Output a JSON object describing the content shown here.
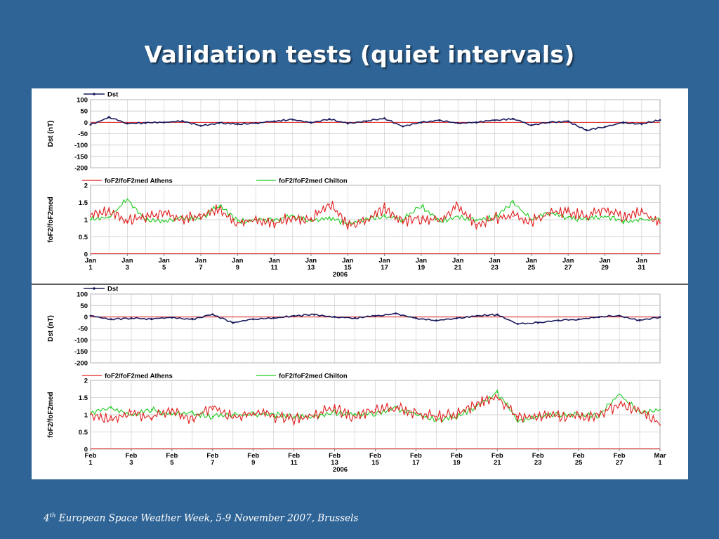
{
  "slide": {
    "title": "Validation tests (quiet intervals)",
    "footer_sup": "th",
    "footer_pre": "4",
    "footer_post": " European Space Weather Week, 5-9 November 2007, Brussels"
  },
  "colors": {
    "background": "#2f6496",
    "dst_line": "#1a1a5e",
    "athens_line": "#e02020",
    "chilton_line": "#22cc22",
    "grid": "#c8c8c8"
  },
  "chart_data": [
    {
      "type": "line",
      "panel": "january-dst",
      "legend": [
        "Dst"
      ],
      "ylabel": "Dst (nT)",
      "ylim": [
        -200,
        100
      ],
      "yticks": [
        "100",
        "50",
        "0",
        "-50",
        "-100",
        "-150",
        "-200"
      ],
      "grid": true,
      "legend_placement": "top-left",
      "series": [
        {
          "name": "Dst",
          "x": [
            1,
            2,
            3,
            4,
            5,
            6,
            7,
            8,
            9,
            10,
            11,
            12,
            13,
            14,
            15,
            16,
            17,
            18,
            19,
            20,
            21,
            22,
            23,
            24,
            25,
            26,
            27,
            28,
            29,
            30,
            31,
            32
          ],
          "values": [
            -10,
            22,
            -5,
            -2,
            0,
            5,
            -15,
            -3,
            -8,
            -3,
            5,
            12,
            -2,
            15,
            -5,
            5,
            18,
            -18,
            0,
            8,
            -3,
            0,
            10,
            15,
            -12,
            0,
            5,
            -35,
            -20,
            0,
            -8,
            10
          ]
        }
      ]
    },
    {
      "type": "line",
      "panel": "january-fof2",
      "legend": [
        "foF2/foF2med Athens",
        "foF2/foF2med Chilton"
      ],
      "ylabel": "foF2/foF2med",
      "ylim": [
        0,
        2
      ],
      "yticks": [
        "2",
        "1.5",
        "1",
        "0.5",
        "0"
      ],
      "xticks_top": [
        "Jan",
        "Jan",
        "Jan",
        "Jan",
        "Jan",
        "Jan",
        "Jan",
        "Jan",
        "Jan",
        "Jan",
        "Jan",
        "Jan",
        "Jan",
        "Jan",
        "Jan",
        "Jan"
      ],
      "xticks_bottom": [
        "1",
        "3",
        "5",
        "7",
        "9",
        "11",
        "13",
        "15",
        "17",
        "19",
        "21",
        "23",
        "25",
        "27",
        "29",
        "31"
      ],
      "xlabel": "2006",
      "grid": true,
      "legend_placement": "top",
      "series": [
        {
          "name": "foF2/foF2med Athens",
          "x": [
            1,
            2,
            3,
            4,
            5,
            6,
            7,
            8,
            9,
            10,
            11,
            12,
            13,
            14,
            15,
            16,
            17,
            18,
            19,
            20,
            21,
            22,
            23,
            24,
            25,
            26,
            27,
            28,
            29,
            30,
            31,
            32
          ],
          "values": [
            1.1,
            1.25,
            0.95,
            1.1,
            1.2,
            0.98,
            1.15,
            1.3,
            0.92,
            1.0,
            0.9,
            1.05,
            1.0,
            1.45,
            0.85,
            1.0,
            1.35,
            0.95,
            1.05,
            0.98,
            1.4,
            0.85,
            1.05,
            1.1,
            0.95,
            1.2,
            1.25,
            1.1,
            1.3,
            1.05,
            1.25,
            0.9
          ]
        },
        {
          "name": "foF2/foF2med Chilton",
          "x": [
            1,
            2,
            3,
            4,
            5,
            6,
            7,
            8,
            9,
            10,
            11,
            12,
            13,
            14,
            15,
            16,
            17,
            18,
            19,
            20,
            21,
            22,
            23,
            24,
            25,
            26,
            27,
            28,
            29,
            30,
            31,
            32
          ],
          "values": [
            1.0,
            1.05,
            1.6,
            1.0,
            0.95,
            1.05,
            1.05,
            1.4,
            0.95,
            1.0,
            1.0,
            1.1,
            0.95,
            1.05,
            0.9,
            1.0,
            1.1,
            1.0,
            1.4,
            0.95,
            1.1,
            1.0,
            1.05,
            1.5,
            1.0,
            1.2,
            1.05,
            1.0,
            1.1,
            0.95,
            1.0,
            1.0
          ]
        }
      ]
    },
    {
      "type": "line",
      "panel": "february-dst",
      "legend": [
        "Dst"
      ],
      "ylabel": "Dst (nT)",
      "ylim": [
        -200,
        100
      ],
      "yticks": [
        "100",
        "50",
        "0",
        "-50",
        "-100",
        "-150",
        "-200"
      ],
      "grid": true,
      "legend_placement": "top-left",
      "series": [
        {
          "name": "Dst",
          "x": [
            1,
            2,
            3,
            4,
            5,
            6,
            7,
            8,
            9,
            10,
            11,
            12,
            13,
            14,
            15,
            16,
            17,
            18,
            19,
            20,
            21,
            22,
            23,
            24,
            25,
            26,
            27,
            28,
            29
          ],
          "values": [
            5,
            -10,
            -5,
            -8,
            -3,
            -10,
            12,
            -25,
            -10,
            -5,
            5,
            10,
            0,
            -5,
            5,
            15,
            -5,
            -15,
            -5,
            5,
            10,
            -30,
            -25,
            -15,
            -10,
            0,
            5,
            -15,
            0
          ]
        }
      ]
    },
    {
      "type": "line",
      "panel": "february-fof2",
      "legend": [
        "foF2/foF2med Athens",
        "foF2/foF2med Chilton"
      ],
      "ylabel": "foF2/foF2med",
      "ylim": [
        0,
        2
      ],
      "yticks": [
        "2",
        "1.5",
        "1",
        "0.5",
        "0"
      ],
      "xticks_top": [
        "Feb",
        "Feb",
        "Feb",
        "Feb",
        "Feb",
        "Feb",
        "Feb",
        "Feb",
        "Feb",
        "Feb",
        "Feb",
        "Feb",
        "Feb",
        "Feb",
        "Mar"
      ],
      "xticks_bottom": [
        "1",
        "3",
        "5",
        "7",
        "9",
        "11",
        "13",
        "15",
        "17",
        "19",
        "21",
        "23",
        "25",
        "27",
        "1"
      ],
      "xlabel": "2006",
      "grid": true,
      "legend_placement": "top",
      "series": [
        {
          "name": "foF2/foF2med Athens",
          "x": [
            1,
            2,
            3,
            4,
            5,
            6,
            7,
            8,
            9,
            10,
            11,
            12,
            13,
            14,
            15,
            16,
            17,
            18,
            19,
            20,
            21,
            22,
            23,
            24,
            25,
            26,
            27,
            28,
            29
          ],
          "values": [
            1.0,
            0.85,
            1.1,
            0.9,
            1.15,
            0.85,
            1.25,
            0.9,
            1.05,
            0.95,
            0.9,
            1.0,
            1.2,
            0.9,
            1.15,
            1.2,
            1.05,
            0.95,
            1.0,
            1.3,
            1.5,
            0.95,
            1.0,
            0.95,
            0.95,
            1.0,
            1.3,
            1.1,
            0.7
          ]
        },
        {
          "name": "foF2/foF2med Chilton",
          "x": [
            1,
            2,
            3,
            4,
            5,
            6,
            7,
            8,
            9,
            10,
            11,
            12,
            13,
            14,
            15,
            16,
            17,
            18,
            19,
            20,
            21,
            22,
            23,
            24,
            25,
            26,
            27,
            28,
            29
          ],
          "values": [
            1.05,
            1.2,
            1.0,
            1.15,
            1.0,
            1.05,
            0.95,
            1.0,
            1.0,
            1.0,
            0.95,
            0.95,
            1.05,
            1.0,
            1.05,
            1.2,
            1.0,
            0.85,
            0.95,
            1.25,
            1.65,
            0.85,
            0.95,
            1.0,
            1.0,
            1.0,
            1.6,
            1.05,
            1.15
          ]
        }
      ]
    }
  ]
}
